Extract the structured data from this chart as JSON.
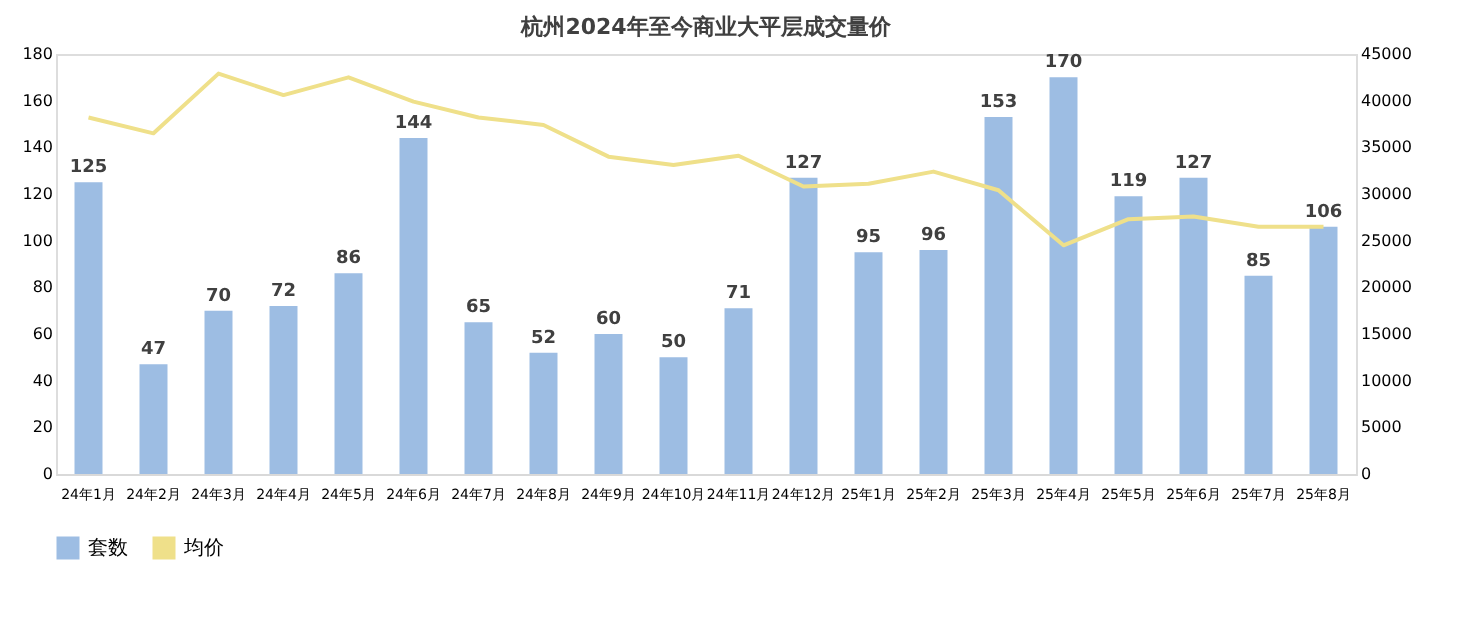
{
  "chart_data": {
    "type": "bar",
    "title": "杭州2024年至今商业大平层成交量价",
    "categories": [
      "24年1月",
      "24年2月",
      "24年3月",
      "24年4月",
      "24年5月",
      "24年6月",
      "24年7月",
      "24年8月",
      "24年9月",
      "24年10月",
      "24年11月",
      "24年12月",
      "25年1月",
      "25年2月",
      "25年3月",
      "25年4月",
      "25年5月",
      "25年6月",
      "25年7月",
      "25年8月"
    ],
    "series": [
      {
        "name": "套数",
        "color": "#9dbde3",
        "values": [
          125,
          47,
          70,
          72,
          86,
          144,
          65,
          52,
          60,
          50,
          71,
          127,
          95,
          96,
          153,
          170,
          119,
          127,
          85,
          106
        ],
        "value_labels": [
          "125",
          "47",
          "70",
          "72",
          "86",
          "144",
          "65",
          "52",
          "60",
          "50",
          "71",
          "127",
          "95",
          "96",
          "153",
          "170",
          "119",
          "127",
          "85",
          "106"
        ]
      },
      {
        "name": "均价",
        "type": "line",
        "axis": "y2",
        "color": "#efe08a",
        "values": [
          38200,
          36500,
          42900,
          40600,
          42500,
          39900,
          38200,
          37400,
          34000,
          33100,
          34100,
          30800,
          31100,
          32400,
          30400,
          24500,
          27300,
          27600,
          26500,
          26500
        ]
      }
    ],
    "ylim": [
      0,
      180
    ],
    "yticks": [
      0,
      20,
      40,
      60,
      80,
      100,
      120,
      140,
      160,
      180
    ],
    "y2lim": [
      0,
      45000
    ],
    "y2ticks": [
      0,
      5000,
      10000,
      15000,
      20000,
      25000,
      30000,
      35000,
      40000,
      45000
    ],
    "grid": false,
    "legend": "bottom",
    "marker": "none",
    "line_style": "solid"
  }
}
